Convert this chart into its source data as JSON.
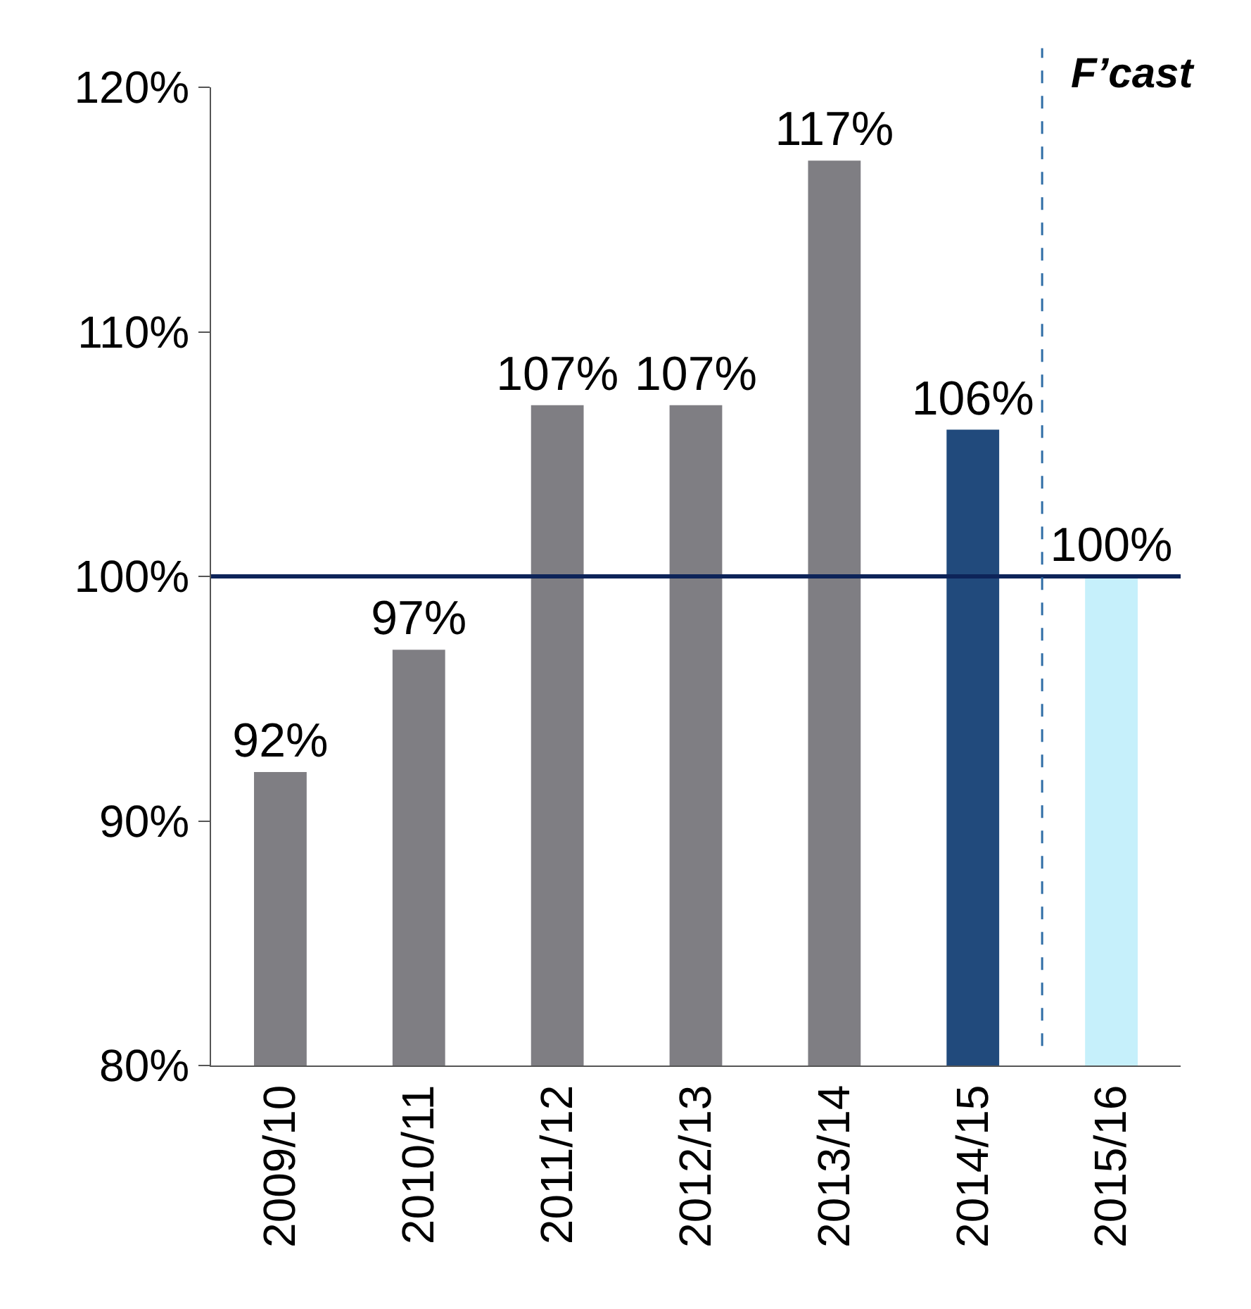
{
  "chart_data": {
    "type": "bar",
    "categories": [
      "2009/10",
      "2010/11",
      "2011/12",
      "2012/13",
      "2013/14",
      "2014/15",
      "2015/16"
    ],
    "values": [
      92,
      97,
      107,
      107,
      117,
      106,
      100
    ],
    "colors": [
      "#7f7e83",
      "#7f7e83",
      "#7f7e83",
      "#7f7e83",
      "#7f7e83",
      "#214a7c",
      "#c6f0fb"
    ],
    "value_labels": [
      "92%",
      "97%",
      "107%",
      "107%",
      "117%",
      "106%",
      "100%"
    ],
    "ylim": [
      80,
      120
    ],
    "yticks": [
      {
        "value": 80,
        "label": "80%"
      },
      {
        "value": 90,
        "label": "90%"
      },
      {
        "value": 100,
        "label": "100%"
      },
      {
        "value": 110,
        "label": "110%"
      },
      {
        "value": 120,
        "label": "120%"
      }
    ],
    "ref_lines": [
      {
        "axis": "y",
        "value": 100,
        "color": "#0d2459",
        "line_style": "solid"
      },
      {
        "axis": "x",
        "value": "2015/16",
        "color": "#2f6da6",
        "line_style": "dashed"
      }
    ],
    "annotations": [
      "F’cast"
    ]
  }
}
